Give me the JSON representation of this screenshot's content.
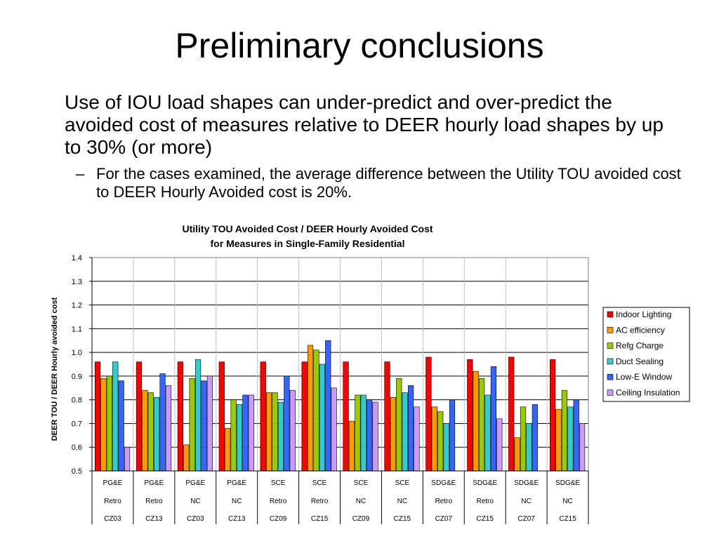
{
  "slide": {
    "title": "Preliminary conclusions",
    "bullet_main": "Use of IOU load shapes can under-predict and over-predict the avoided cost of measures relative to DEER hourly load shapes by up to 30% (or more)",
    "bullet_sub_marker": "–",
    "bullet_sub": "For the cases examined, the average difference between the Utility TOU avoided cost to DEER Hourly Avoided cost is 20%."
  },
  "chart_data": {
    "type": "bar",
    "title": "Utility TOU Avoided Cost / DEER Hourly Avoided Cost",
    "subtitle": "for Measures in Single-Family Residential",
    "xlabel": "",
    "ylabel": "DEER TOU / DEER Hourly avoided cost",
    "ylim": [
      0.5,
      1.4
    ],
    "yticks": [
      "0.5",
      "0.6",
      "0.7",
      "0.8",
      "0.9",
      "1.0",
      "1.1",
      "1.2",
      "1.3",
      "1.4"
    ],
    "grid": true,
    "legend_position": "right",
    "categories": [
      [
        "PG&E",
        "Retro",
        "CZ03"
      ],
      [
        "PG&E",
        "Retro",
        "CZ13"
      ],
      [
        "PG&E",
        "NC",
        "CZ03"
      ],
      [
        "PG&E",
        "NC",
        "CZ13"
      ],
      [
        "SCE",
        "Retro",
        "CZ09"
      ],
      [
        "SCE",
        "Retro",
        "CZ15"
      ],
      [
        "SCE",
        "NC",
        "CZ09"
      ],
      [
        "SCE",
        "NC",
        "CZ15"
      ],
      [
        "SDG&E",
        "Retro",
        "CZ07"
      ],
      [
        "SDG&E",
        "Retro",
        "CZ15"
      ],
      [
        "SDG&E",
        "NC",
        "CZ07"
      ],
      [
        "SDG&E",
        "NC",
        "CZ15"
      ]
    ],
    "series": [
      {
        "name": "Indoor Lighting",
        "color": "#ff0000",
        "values": [
          0.96,
          0.96,
          0.96,
          0.96,
          0.96,
          0.96,
          0.96,
          0.96,
          0.98,
          0.97,
          0.98,
          0.97
        ]
      },
      {
        "name": "AC efficiency",
        "color": "#ff9900",
        "values": [
          0.89,
          0.84,
          0.61,
          0.68,
          0.83,
          1.03,
          0.71,
          0.81,
          0.77,
          0.92,
          0.64,
          0.76
        ]
      },
      {
        "name": "Refg Charge",
        "color": "#99cc00",
        "values": [
          0.9,
          0.83,
          0.89,
          0.8,
          0.83,
          1.01,
          0.82,
          0.89,
          0.75,
          0.89,
          0.77,
          0.84
        ]
      },
      {
        "name": "Duct Sealing",
        "color": "#33cccc",
        "values": [
          0.96,
          0.81,
          0.97,
          0.78,
          0.79,
          0.95,
          0.82,
          0.83,
          0.7,
          0.82,
          0.7,
          0.77
        ]
      },
      {
        "name": "Low-E Window",
        "color": "#3366ff",
        "values": [
          0.88,
          0.91,
          0.88,
          0.82,
          0.9,
          1.05,
          0.8,
          0.86,
          0.8,
          0.94,
          0.78,
          0.8
        ]
      },
      {
        "name": "Ceiling Insulation",
        "color": "#cc99ff",
        "values": [
          0.6,
          0.86,
          0.9,
          0.82,
          0.84,
          0.85,
          0.79,
          0.77,
          0.5,
          0.72,
          0.5,
          0.7
        ]
      }
    ]
  }
}
